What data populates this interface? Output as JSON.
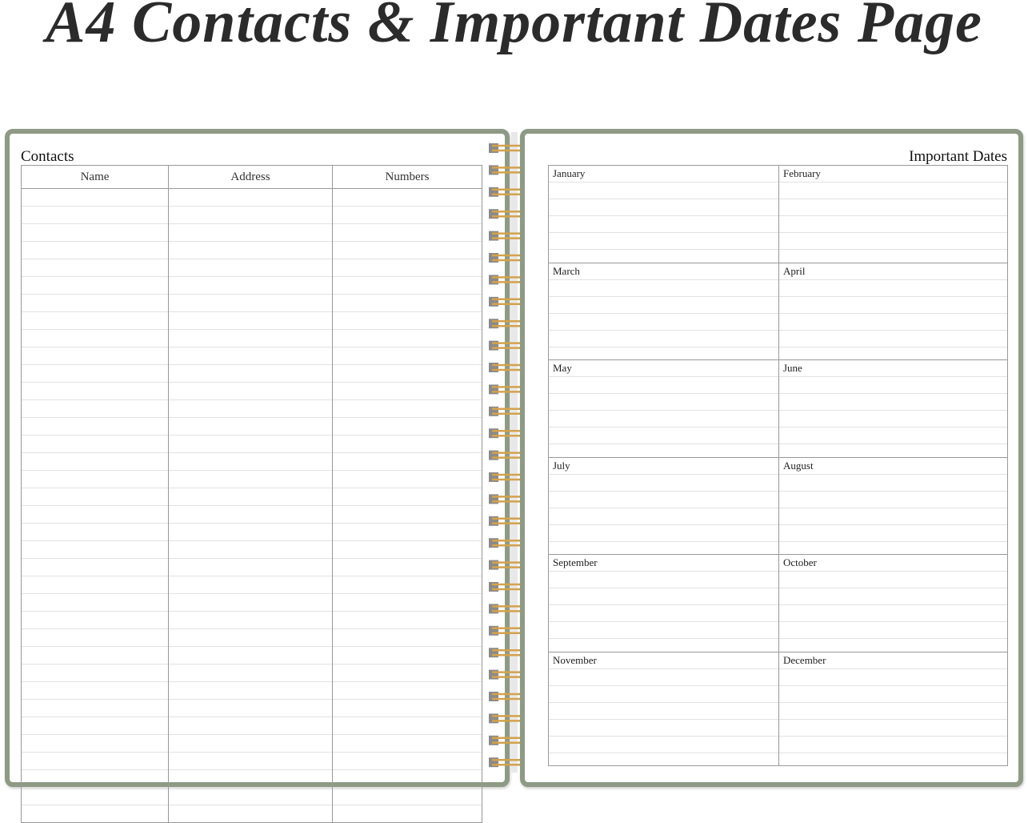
{
  "title": "A4 Contacts & Important Dates Page",
  "contacts": {
    "heading": "Contacts",
    "columns": [
      "Name",
      "Address",
      "Numbers"
    ],
    "rows": 36
  },
  "dates": {
    "heading": "Important Dates",
    "months": [
      "January",
      "February",
      "March",
      "April",
      "May",
      "June",
      "July",
      "August",
      "September",
      "October",
      "November",
      "December"
    ]
  },
  "colors": {
    "border": "#8e9a85",
    "ring": "#d4a24c"
  }
}
